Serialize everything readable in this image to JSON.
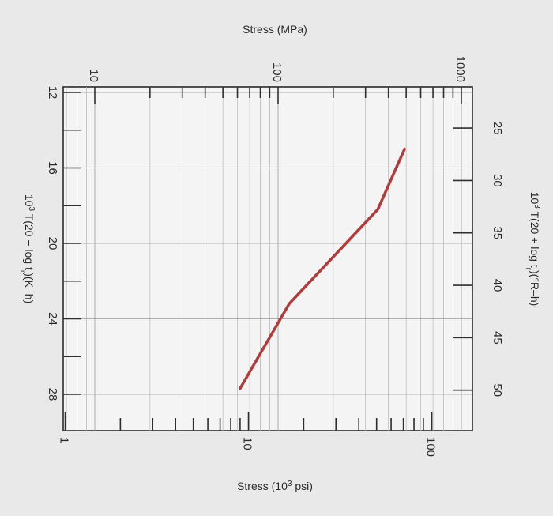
{
  "chart_data": {
    "type": "line",
    "title": "",
    "x_axis": {
      "label_sup": "3",
      "label_before": "10",
      "label_after": " T(20 + log t",
      "label_sub": "r",
      "label_end": ")(K–h)",
      "ticks": [
        12,
        16,
        20,
        24,
        28
      ],
      "range": [
        12,
        30
      ]
    },
    "x2_axis": {
      "label_before": "10",
      "label_sup": "3",
      "label_after": " T(20 + log t",
      "label_sub": "r",
      "label_end": ")(°R–h)",
      "ticks": [
        25,
        30,
        35,
        40,
        45,
        50
      ]
    },
    "y_axis": {
      "label": "Stress (MPa)",
      "scale": "log",
      "ticks": [
        10,
        100,
        1000
      ],
      "tick_labels": [
        "10",
        "100",
        "1000"
      ]
    },
    "y2_axis": {
      "label_before": "Stress (10",
      "label_sup": "3",
      "label_after": " psi)",
      "scale": "log",
      "ticks": [
        1,
        10,
        100
      ],
      "tick_labels": [
        "1",
        "10",
        "100"
      ]
    },
    "grid": true,
    "series": [
      {
        "color": "#b23a3a",
        "points": [
          {
            "x": 15.0,
            "y": 490
          },
          {
            "x": 18.2,
            "y": 350
          },
          {
            "x": 23.2,
            "y": 115
          },
          {
            "x": 27.7,
            "y": 62
          }
        ]
      }
    ]
  }
}
